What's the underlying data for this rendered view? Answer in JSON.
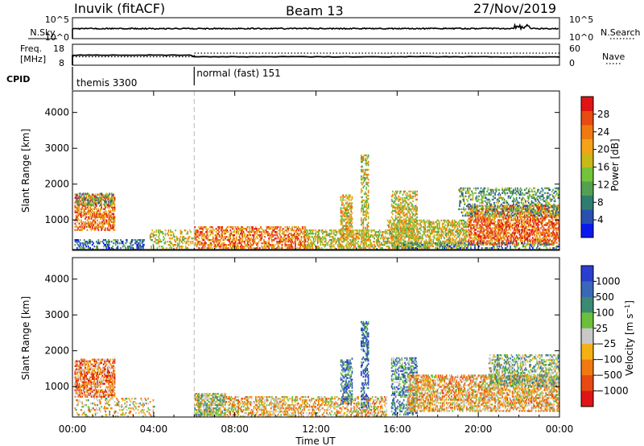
{
  "header": {
    "station": "Inuvik (fitACF)",
    "beam": "Beam 13",
    "date": "27/Nov/2019"
  },
  "top_panels": {
    "nsky": {
      "left_label": "N.Sky",
      "left_ticks": [
        "10^5",
        "10^0"
      ],
      "right_ticks": [
        "10^5",
        "10^0"
      ],
      "right_label": "N.Search",
      "series": [
        {
          "name": "N.Sky",
          "style": "solid"
        },
        {
          "name": "N.Search",
          "style": "dotted"
        }
      ]
    },
    "freq": {
      "left_label_1": "Freq.",
      "left_label_2": "[MHz]",
      "left_ticks": [
        "18",
        "8"
      ],
      "right_ticks": [
        "60",
        "0"
      ],
      "right_label": "Nave",
      "series": [
        {
          "name": "Freq.",
          "style": "solid"
        },
        {
          "name": "Nave",
          "style": "dotted"
        }
      ]
    },
    "cpid": {
      "label": "CPID",
      "modes": [
        {
          "name": "themis 3300",
          "start_hour": 0
        },
        {
          "name": "normal (fast) 151",
          "start_hour": 6
        }
      ]
    }
  },
  "chart_data": [
    {
      "type": "heatmap",
      "name": "power",
      "ylabel": "Slant Range [km]",
      "yticks": [
        1000,
        2000,
        3000,
        4000
      ],
      "ylim": [
        150,
        4600
      ],
      "xlim": [
        0,
        24
      ],
      "colorbar": {
        "label": "Power [dB]",
        "tick_labels": [
          "4",
          "8",
          "12",
          "16",
          "20",
          "24",
          "28"
        ],
        "tick_values": [
          4,
          8,
          12,
          16,
          20,
          24,
          28
        ],
        "range": [
          0,
          32
        ],
        "colors": [
          "#0a1aee",
          "#2a4fb0",
          "#2f7d70",
          "#55a050",
          "#74c43a",
          "#c8b818",
          "#f4a21a",
          "#f07a10",
          "#e84a12",
          "#e01414"
        ]
      },
      "regions": [
        {
          "x": [
            0.1,
            2.1
          ],
          "y": [
            700,
            1700
          ],
          "level": 0.75,
          "density": 0.55
        },
        {
          "x": [
            0.2,
            2.0
          ],
          "y": [
            1400,
            1750
          ],
          "level": 0.35,
          "density": 0.4
        },
        {
          "x": [
            0.1,
            3.5
          ],
          "y": [
            150,
            450
          ],
          "level": 0.2,
          "density": 0.35
        },
        {
          "x": [
            3.8,
            6.2
          ],
          "y": [
            150,
            700
          ],
          "level": 0.55,
          "density": 0.3
        },
        {
          "x": [
            6.0,
            11.5
          ],
          "y": [
            150,
            800
          ],
          "level": 0.75,
          "density": 0.5
        },
        {
          "x": [
            11.5,
            15.5
          ],
          "y": [
            150,
            700
          ],
          "level": 0.55,
          "density": 0.5
        },
        {
          "x": [
            13.2,
            13.8
          ],
          "y": [
            500,
            1700
          ],
          "level": 0.6,
          "density": 0.55
        },
        {
          "x": [
            14.2,
            14.6
          ],
          "y": [
            400,
            2800
          ],
          "level": 0.55,
          "density": 0.45
        },
        {
          "x": [
            15.7,
            17.0
          ],
          "y": [
            200,
            1800
          ],
          "level": 0.55,
          "density": 0.45
        },
        {
          "x": [
            15.5,
            19.5
          ],
          "y": [
            200,
            1000
          ],
          "level": 0.55,
          "density": 0.5
        },
        {
          "x": [
            19.5,
            24.0
          ],
          "y": [
            300,
            1400
          ],
          "level": 0.8,
          "density": 0.6
        },
        {
          "x": [
            19.0,
            24.0
          ],
          "y": [
            1100,
            1900
          ],
          "level": 0.35,
          "density": 0.35
        },
        {
          "x": [
            16.0,
            24.0
          ],
          "y": [
            150,
            350
          ],
          "level": 0.3,
          "density": 0.3
        }
      ]
    },
    {
      "type": "heatmap",
      "name": "velocity",
      "ylabel": "Slant Range [km]",
      "yticks": [
        1000,
        2000,
        3000,
        4000
      ],
      "ylim": [
        150,
        4600
      ],
      "xlim": [
        0,
        24
      ],
      "colorbar": {
        "label": "Velocity [m s^-1]",
        "tick_labels": [
          "1000",
          "500",
          "100",
          "25",
          "−25",
          "−100",
          "−500",
          "−1000"
        ],
        "colors": [
          "#2a3ed0",
          "#3a67b8",
          "#3b8a72",
          "#6cbf3a",
          "#c8c8c8",
          "#f4b014",
          "#f07a10",
          "#e84a12",
          "#e01414"
        ]
      },
      "regions": [
        {
          "x": [
            0.1,
            2.1
          ],
          "y": [
            700,
            1750
          ],
          "level": 0.72,
          "density": 0.6
        },
        {
          "x": [
            0.1,
            4.0
          ],
          "y": [
            150,
            650
          ],
          "level": 0.55,
          "density": 0.25
        },
        {
          "x": [
            6.0,
            7.5
          ],
          "y": [
            150,
            800
          ],
          "level": 0.45,
          "density": 0.65
        },
        {
          "x": [
            7.5,
            12.0
          ],
          "y": [
            150,
            700
          ],
          "level": 0.6,
          "density": 0.45
        },
        {
          "x": [
            12.0,
            15.5
          ],
          "y": [
            150,
            700
          ],
          "level": 0.6,
          "density": 0.45
        },
        {
          "x": [
            13.2,
            13.8
          ],
          "y": [
            500,
            1800
          ],
          "level": 0.2,
          "density": 0.5
        },
        {
          "x": [
            14.2,
            14.6
          ],
          "y": [
            400,
            2800
          ],
          "level": 0.15,
          "density": 0.45
        },
        {
          "x": [
            15.7,
            17.0
          ],
          "y": [
            200,
            1800
          ],
          "level": 0.3,
          "density": 0.45
        },
        {
          "x": [
            16.5,
            24.0
          ],
          "y": [
            300,
            1300
          ],
          "level": 0.62,
          "density": 0.55
        },
        {
          "x": [
            20.5,
            24.0
          ],
          "y": [
            1000,
            1900
          ],
          "level": 0.4,
          "density": 0.45
        }
      ]
    }
  ],
  "x_axis": {
    "tick_labels": [
      "00:00",
      "04:00",
      "08:00",
      "12:00",
      "16:00",
      "20:00",
      "00:00"
    ],
    "tick_hours": [
      0,
      4,
      8,
      12,
      16,
      20,
      24
    ],
    "label": "Time UT"
  },
  "mode_change_hour": 6
}
